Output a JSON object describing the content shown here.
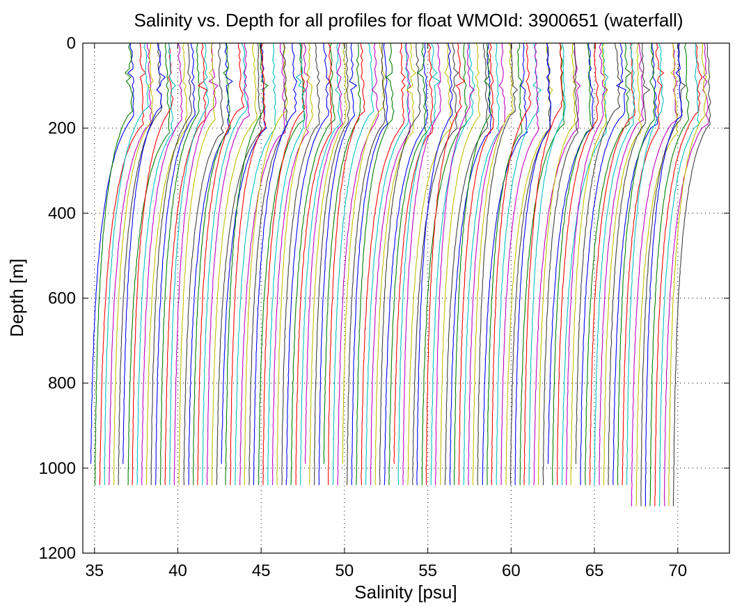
{
  "chart_data": {
    "type": "line",
    "title": "Salinity vs. Depth for all profiles for float WMOId: 3900651 (waterfall)",
    "xlabel": "Salinity [psu]",
    "ylabel": "Depth [m]",
    "xlim": [
      34.3,
      73.1
    ],
    "ylim": [
      0,
      1200
    ],
    "y_reversed": true,
    "xticks": [
      35,
      40,
      45,
      50,
      55,
      60,
      65,
      70
    ],
    "yticks": [
      0,
      200,
      400,
      600,
      800,
      1000,
      1200
    ],
    "grid": true,
    "legend": "none",
    "profile_count": 126,
    "waterfall_offset_psu": 0.28,
    "first_profile_deep_salinity": 34.7,
    "last_profile_deep_salinity": 70.5,
    "typical_max_depth_m": 1040,
    "series_colors": [
      "#0000ff",
      "#007f00",
      "#ff0000",
      "#00bfbf",
      "#bf00bf",
      "#bfbf00",
      "#3f3f3f"
    ]
  }
}
